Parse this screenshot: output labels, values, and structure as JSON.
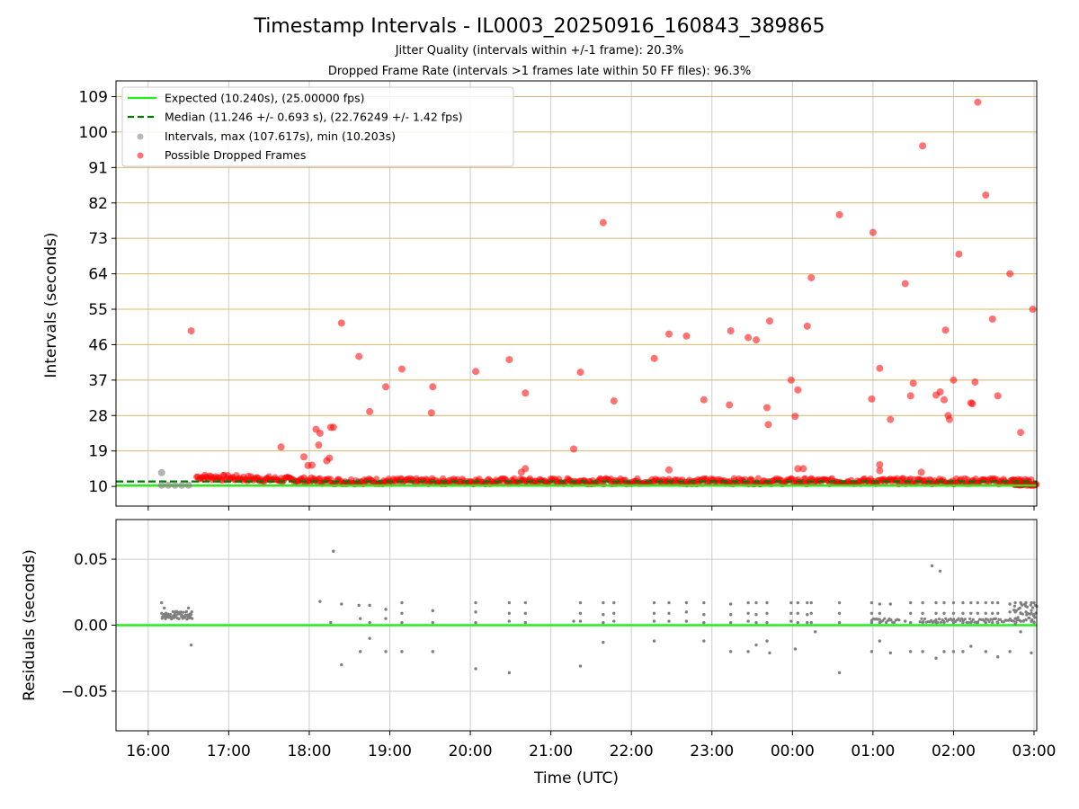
{
  "title": "Timestamp Intervals - IL0003_20250916_160843_389865",
  "subtitle_1": "Jitter Quality (intervals within +/-1 frame): 20.3%",
  "subtitle_2": "Dropped Frame Rate (intervals >1 frames late within 50 FF files): 96.3%",
  "colors": {
    "expected": "#22ee22",
    "median": "#007700",
    "intervals": "#808080",
    "dropped": "#ff0000",
    "hgrid_top": "#d4b86a",
    "vgrid": "#cccccc"
  },
  "chart_data": [
    {
      "type": "scatter",
      "ylabel": "Intervals (seconds)",
      "ylim": [
        5,
        113
      ],
      "yticks": [
        10,
        19,
        28,
        37,
        46,
        55,
        64,
        73,
        82,
        91,
        100,
        109
      ],
      "ytick_labels": [
        "10",
        "19",
        "28",
        "37",
        "46",
        "55",
        "64",
        "73",
        "82",
        "91",
        "100",
        "109"
      ],
      "grid": "horizontal, tan",
      "legend_position": "top-left",
      "legend": [
        "Expected (10.240s), (25.00000 fps)",
        "Median (11.246 +/- 0.693 s), (22.76249 +/- 1.42 fps)",
        "Intervals, max (107.617s), min (10.203s)",
        "Possible Dropped Frames"
      ],
      "expected_line_y": 10.24,
      "median_line_y": 11.246,
      "band_description": "dense band of dropped-frame points between ~10 and ~13 s from 16:36 to 03:00",
      "intervals_points": [
        {
          "x": "16:10",
          "y": 13.5
        },
        {
          "x": "16:10",
          "y": 10.3
        },
        {
          "x": "16:15",
          "y": 10.3
        },
        {
          "x": "16:20",
          "y": 10.3
        },
        {
          "x": "16:25",
          "y": 10.3
        },
        {
          "x": "16:30",
          "y": 10.3
        }
      ],
      "dropped_points": [
        {
          "x": "16:32",
          "y": 49.5
        },
        {
          "x": "17:39",
          "y": 20.0
        },
        {
          "x": "17:56",
          "y": 17.5
        },
        {
          "x": "17:59",
          "y": 15.3
        },
        {
          "x": "18:02",
          "y": 15.4
        },
        {
          "x": "18:05",
          "y": 24.5
        },
        {
          "x": "18:07",
          "y": 20.5
        },
        {
          "x": "18:08",
          "y": 23.5
        },
        {
          "x": "18:13",
          "y": 16.5
        },
        {
          "x": "18:15",
          "y": 17.2
        },
        {
          "x": "18:16",
          "y": 25.0
        },
        {
          "x": "18:18",
          "y": 25.0
        },
        {
          "x": "18:24",
          "y": 51.5
        },
        {
          "x": "18:37",
          "y": 43.0
        },
        {
          "x": "18:45",
          "y": 29.0
        },
        {
          "x": "18:57",
          "y": 35.3
        },
        {
          "x": "19:09",
          "y": 39.8
        },
        {
          "x": "19:31",
          "y": 28.7
        },
        {
          "x": "19:32",
          "y": 35.3
        },
        {
          "x": "20:04",
          "y": 39.2
        },
        {
          "x": "20:29",
          "y": 42.2
        },
        {
          "x": "20:41",
          "y": 33.7
        },
        {
          "x": "20:38",
          "y": 13.6
        },
        {
          "x": "20:41",
          "y": 14.5
        },
        {
          "x": "21:17",
          "y": 19.5
        },
        {
          "x": "21:22",
          "y": 39.0
        },
        {
          "x": "21:39",
          "y": 77.0
        },
        {
          "x": "21:47",
          "y": 31.7
        },
        {
          "x": "22:17",
          "y": 42.5
        },
        {
          "x": "22:28",
          "y": 48.7
        },
        {
          "x": "22:28",
          "y": 14.2
        },
        {
          "x": "22:41",
          "y": 48.2
        },
        {
          "x": "22:54",
          "y": 32.0
        },
        {
          "x": "23:14",
          "y": 49.5
        },
        {
          "x": "23:13",
          "y": 30.7
        },
        {
          "x": "23:27",
          "y": 47.8
        },
        {
          "x": "23:33",
          "y": 47.2
        },
        {
          "x": "23:41",
          "y": 30.0
        },
        {
          "x": "23:43",
          "y": 52.0
        },
        {
          "x": "23:42",
          "y": 25.7
        },
        {
          "x": "23:59",
          "y": 37.0
        },
        {
          "x": "00:02",
          "y": 27.8
        },
        {
          "x": "00:04",
          "y": 34.5
        },
        {
          "x": "00:04",
          "y": 14.5
        },
        {
          "x": "00:08",
          "y": 14.5
        },
        {
          "x": "00:11",
          "y": 50.7
        },
        {
          "x": "00:14",
          "y": 63.0
        },
        {
          "x": "00:35",
          "y": 79.0
        },
        {
          "x": "00:59",
          "y": 32.2
        },
        {
          "x": "01:00",
          "y": 74.5
        },
        {
          "x": "01:05",
          "y": 40.0
        },
        {
          "x": "01:05",
          "y": 15.5
        },
        {
          "x": "01:05",
          "y": 14.0
        },
        {
          "x": "01:13",
          "y": 27.0
        },
        {
          "x": "01:24",
          "y": 61.5
        },
        {
          "x": "01:28",
          "y": 33.0
        },
        {
          "x": "01:30",
          "y": 36.2
        },
        {
          "x": "01:37",
          "y": 96.5
        },
        {
          "x": "01:36",
          "y": 13.6
        },
        {
          "x": "01:47",
          "y": 33.2
        },
        {
          "x": "01:50",
          "y": 34.0
        },
        {
          "x": "01:53",
          "y": 32.0
        },
        {
          "x": "01:54",
          "y": 49.7
        },
        {
          "x": "01:56",
          "y": 28.0
        },
        {
          "x": "01:57",
          "y": 27.0
        },
        {
          "x": "02:00",
          "y": 37.0
        },
        {
          "x": "02:04",
          "y": 69.0
        },
        {
          "x": "02:13",
          "y": 31.2
        },
        {
          "x": "02:14",
          "y": 31.0
        },
        {
          "x": "02:16",
          "y": 36.5
        },
        {
          "x": "02:18",
          "y": 107.6
        },
        {
          "x": "02:24",
          "y": 84.0
        },
        {
          "x": "02:29",
          "y": 52.5
        },
        {
          "x": "02:33",
          "y": 33.0
        },
        {
          "x": "02:42",
          "y": 64.0
        },
        {
          "x": "02:50",
          "y": 23.7
        },
        {
          "x": "02:59",
          "y": 55.0
        }
      ]
    },
    {
      "type": "scatter",
      "xlabel": "Time (UTC)",
      "ylabel": "Residuals (seconds)",
      "ylim": [
        -0.08,
        0.08
      ],
      "yticks": [
        0.05,
        0.0,
        -0.05
      ],
      "ytick_labels": [
        "0.05",
        "0.00",
        "−0.05"
      ],
      "x_tick_labels": [
        "16:00",
        "17:00",
        "18:00",
        "19:00",
        "20:00",
        "21:00",
        "22:00",
        "23:00",
        "00:00",
        "01:00",
        "02:00",
        "03:00"
      ],
      "x_range": [
        "15:36",
        "03:02"
      ],
      "zero_line_y": 0.0,
      "band_description": "dense cluster of residuals ~0.005 to 0.012 from 16:10 to 16:33",
      "residual_points": [
        {
          "x": "16:10",
          "y": 0.017
        },
        {
          "x": "16:12",
          "y": 0.013
        },
        {
          "x": "16:30",
          "y": 0.013
        },
        {
          "x": "16:32",
          "y": -0.015
        },
        {
          "x": "18:08",
          "y": 0.018
        },
        {
          "x": "18:16",
          "y": 0.002
        },
        {
          "x": "18:18",
          "y": 0.056
        },
        {
          "x": "18:24",
          "y": 0.016
        },
        {
          "x": "18:24",
          "y": -0.03
        },
        {
          "x": "18:37",
          "y": 0.015
        },
        {
          "x": "18:38",
          "y": 0.005
        },
        {
          "x": "18:38",
          "y": -0.02
        },
        {
          "x": "18:45",
          "y": 0.015
        },
        {
          "x": "18:45",
          "y": 0.002
        },
        {
          "x": "18:45",
          "y": -0.01
        },
        {
          "x": "18:57",
          "y": 0.012
        },
        {
          "x": "18:57",
          "y": 0.005
        },
        {
          "x": "18:57",
          "y": -0.02
        },
        {
          "x": "19:09",
          "y": 0.017
        },
        {
          "x": "19:09",
          "y": 0.009
        },
        {
          "x": "19:09",
          "y": 0.002
        },
        {
          "x": "19:09",
          "y": -0.02
        },
        {
          "x": "19:32",
          "y": 0.011
        },
        {
          "x": "19:32",
          "y": 0.002
        },
        {
          "x": "19:32",
          "y": -0.02
        },
        {
          "x": "20:04",
          "y": 0.017
        },
        {
          "x": "20:04",
          "y": 0.01
        },
        {
          "x": "20:04",
          "y": 0.002
        },
        {
          "x": "20:04",
          "y": -0.033
        },
        {
          "x": "20:29",
          "y": 0.017
        },
        {
          "x": "20:29",
          "y": 0.009
        },
        {
          "x": "20:29",
          "y": 0.003
        },
        {
          "x": "20:29",
          "y": -0.036
        },
        {
          "x": "20:41",
          "y": 0.017
        },
        {
          "x": "20:41",
          "y": 0.009
        },
        {
          "x": "20:41",
          "y": 0.002
        },
        {
          "x": "21:17",
          "y": 0.003
        },
        {
          "x": "21:22",
          "y": 0.017
        },
        {
          "x": "21:22",
          "y": 0.009
        },
        {
          "x": "21:22",
          "y": 0.003
        },
        {
          "x": "21:22",
          "y": -0.031
        },
        {
          "x": "21:39",
          "y": 0.017
        },
        {
          "x": "21:39",
          "y": 0.008
        },
        {
          "x": "21:39",
          "y": 0.002
        },
        {
          "x": "21:39",
          "y": -0.013
        },
        {
          "x": "21:47",
          "y": 0.017
        },
        {
          "x": "21:47",
          "y": 0.009
        },
        {
          "x": "21:47",
          "y": 0.003
        },
        {
          "x": "22:17",
          "y": 0.017
        },
        {
          "x": "22:17",
          "y": 0.009
        },
        {
          "x": "22:17",
          "y": 0.003
        },
        {
          "x": "22:17",
          "y": -0.012
        },
        {
          "x": "22:28",
          "y": 0.017
        },
        {
          "x": "22:28",
          "y": 0.009
        },
        {
          "x": "22:28",
          "y": 0.003
        },
        {
          "x": "22:41",
          "y": 0.017
        },
        {
          "x": "22:41",
          "y": 0.01
        },
        {
          "x": "22:41",
          "y": 0.003
        },
        {
          "x": "22:54",
          "y": 0.017
        },
        {
          "x": "22:54",
          "y": 0.008
        },
        {
          "x": "22:54",
          "y": 0.002
        },
        {
          "x": "22:54",
          "y": -0.012
        },
        {
          "x": "23:14",
          "y": 0.016
        },
        {
          "x": "23:14",
          "y": 0.008
        },
        {
          "x": "23:14",
          "y": 0.002
        },
        {
          "x": "23:14",
          "y": -0.02
        },
        {
          "x": "23:27",
          "y": 0.017
        },
        {
          "x": "23:27",
          "y": 0.009
        },
        {
          "x": "23:27",
          "y": 0.003
        },
        {
          "x": "23:27",
          "y": -0.02
        },
        {
          "x": "23:33",
          "y": 0.017
        },
        {
          "x": "23:33",
          "y": 0.008
        },
        {
          "x": "23:33",
          "y": 0.002
        },
        {
          "x": "23:33",
          "y": -0.015
        },
        {
          "x": "23:41",
          "y": 0.017
        },
        {
          "x": "23:41",
          "y": 0.009
        },
        {
          "x": "23:41",
          "y": 0.002
        },
        {
          "x": "23:41",
          "y": -0.012
        },
        {
          "x": "23:43",
          "y": -0.021
        },
        {
          "x": "23:59",
          "y": 0.017
        },
        {
          "x": "23:59",
          "y": 0.009
        },
        {
          "x": "23:59",
          "y": 0.003
        },
        {
          "x": "00:02",
          "y": -0.018
        },
        {
          "x": "00:04",
          "y": 0.017
        },
        {
          "x": "00:04",
          "y": 0.009
        },
        {
          "x": "00:04",
          "y": 0.002
        },
        {
          "x": "00:11",
          "y": 0.017
        },
        {
          "x": "00:11",
          "y": 0.008
        },
        {
          "x": "00:11",
          "y": 0.002
        },
        {
          "x": "00:14",
          "y": 0.017
        },
        {
          "x": "00:14",
          "y": 0.009
        },
        {
          "x": "00:14",
          "y": 0.002
        },
        {
          "x": "00:17",
          "y": -0.005
        },
        {
          "x": "00:35",
          "y": 0.017
        },
        {
          "x": "00:35",
          "y": 0.009
        },
        {
          "x": "00:35",
          "y": 0.002
        },
        {
          "x": "00:35",
          "y": -0.036
        },
        {
          "x": "00:59",
          "y": 0.017
        },
        {
          "x": "00:59",
          "y": 0.009
        },
        {
          "x": "00:59",
          "y": 0.002
        },
        {
          "x": "00:59",
          "y": -0.02
        },
        {
          "x": "01:05",
          "y": 0.016
        },
        {
          "x": "01:05",
          "y": 0.009
        },
        {
          "x": "01:05",
          "y": 0.002
        },
        {
          "x": "01:05",
          "y": -0.012
        },
        {
          "x": "01:13",
          "y": 0.016
        },
        {
          "x": "01:13",
          "y": 0.004
        },
        {
          "x": "01:13",
          "y": -0.021
        },
        {
          "x": "01:24",
          "y": 0.003
        },
        {
          "x": "01:28",
          "y": 0.017
        },
        {
          "x": "01:28",
          "y": 0.009
        },
        {
          "x": "01:28",
          "y": 0.002
        },
        {
          "x": "01:28",
          "y": -0.02
        },
        {
          "x": "01:37",
          "y": 0.017
        },
        {
          "x": "01:37",
          "y": 0.009
        },
        {
          "x": "01:37",
          "y": 0.002
        },
        {
          "x": "01:37",
          "y": -0.02
        },
        {
          "x": "01:44",
          "y": 0.045
        },
        {
          "x": "01:47",
          "y": 0.017
        },
        {
          "x": "01:47",
          "y": 0.009
        },
        {
          "x": "01:47",
          "y": 0.002
        },
        {
          "x": "01:47",
          "y": -0.025
        },
        {
          "x": "01:50",
          "y": 0.041
        },
        {
          "x": "01:53",
          "y": 0.017
        },
        {
          "x": "01:53",
          "y": 0.009
        },
        {
          "x": "01:53",
          "y": 0.002
        },
        {
          "x": "01:53",
          "y": -0.02
        },
        {
          "x": "02:00",
          "y": 0.017
        },
        {
          "x": "02:00",
          "y": 0.009
        },
        {
          "x": "02:00",
          "y": 0.002
        },
        {
          "x": "02:00",
          "y": -0.02
        },
        {
          "x": "02:07",
          "y": 0.017
        },
        {
          "x": "02:07",
          "y": 0.009
        },
        {
          "x": "02:07",
          "y": 0.002
        },
        {
          "x": "02:07",
          "y": -0.02
        },
        {
          "x": "02:13",
          "y": 0.017
        },
        {
          "x": "02:13",
          "y": 0.009
        },
        {
          "x": "02:13",
          "y": 0.002
        },
        {
          "x": "02:13",
          "y": -0.016
        },
        {
          "x": "02:18",
          "y": 0.017
        },
        {
          "x": "02:18",
          "y": 0.009
        },
        {
          "x": "02:18",
          "y": 0.002
        },
        {
          "x": "02:24",
          "y": 0.017
        },
        {
          "x": "02:24",
          "y": 0.009
        },
        {
          "x": "02:24",
          "y": 0.002
        },
        {
          "x": "02:24",
          "y": -0.02
        },
        {
          "x": "02:29",
          "y": 0.017
        },
        {
          "x": "02:29",
          "y": 0.009
        },
        {
          "x": "02:29",
          "y": 0.002
        },
        {
          "x": "02:33",
          "y": 0.017
        },
        {
          "x": "02:33",
          "y": 0.009
        },
        {
          "x": "02:33",
          "y": 0.002
        },
        {
          "x": "02:33",
          "y": -0.024
        },
        {
          "x": "02:42",
          "y": 0.016
        },
        {
          "x": "02:42",
          "y": 0.01
        },
        {
          "x": "02:42",
          "y": 0.004
        },
        {
          "x": "02:42",
          "y": -0.02
        },
        {
          "x": "02:46",
          "y": 0.017
        },
        {
          "x": "02:46",
          "y": 0.01
        },
        {
          "x": "02:46",
          "y": 0.005
        },
        {
          "x": "02:46",
          "y": 0.001
        },
        {
          "x": "02:50",
          "y": 0.017
        },
        {
          "x": "02:50",
          "y": 0.009
        },
        {
          "x": "02:50",
          "y": 0.003
        },
        {
          "x": "02:50",
          "y": -0.005
        },
        {
          "x": "02:54",
          "y": 0.017
        },
        {
          "x": "02:54",
          "y": 0.01
        },
        {
          "x": "02:54",
          "y": 0.004
        },
        {
          "x": "02:58",
          "y": 0.017
        },
        {
          "x": "02:58",
          "y": 0.009
        },
        {
          "x": "02:58",
          "y": 0.003
        },
        {
          "x": "02:58",
          "y": -0.021
        },
        {
          "x": "03:00",
          "y": 0.017
        },
        {
          "x": "03:00",
          "y": 0.008
        },
        {
          "x": "03:00",
          "y": 0.002
        }
      ]
    }
  ]
}
